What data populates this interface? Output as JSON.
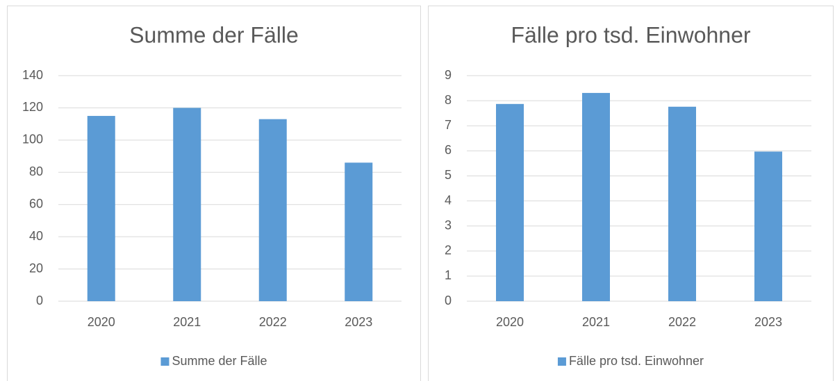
{
  "chart_data": [
    {
      "type": "bar",
      "title": "Summe der Fälle",
      "categories": [
        "2020",
        "2021",
        "2022",
        "2023"
      ],
      "series": [
        {
          "name": "Summe der Fälle",
          "color": "#5b9bd5",
          "values": [
            115,
            120,
            113,
            86
          ]
        }
      ],
      "ylim": [
        0,
        140
      ],
      "yticks": [
        0,
        20,
        40,
        60,
        80,
        100,
        120,
        140
      ],
      "grid": true,
      "legend": "bottom"
    },
    {
      "type": "bar",
      "title": "Fälle pro tsd. Einwohner",
      "categories": [
        "2020",
        "2021",
        "2022",
        "2023"
      ],
      "series": [
        {
          "name": "Fälle pro tsd. Einwohner",
          "color": "#5b9bd5",
          "values": [
            7.87,
            8.31,
            7.76,
            5.97
          ]
        }
      ],
      "ylim": [
        0,
        9
      ],
      "yticks": [
        0,
        1,
        2,
        3,
        4,
        5,
        6,
        7,
        8,
        9
      ],
      "grid": true,
      "legend": "bottom"
    }
  ]
}
